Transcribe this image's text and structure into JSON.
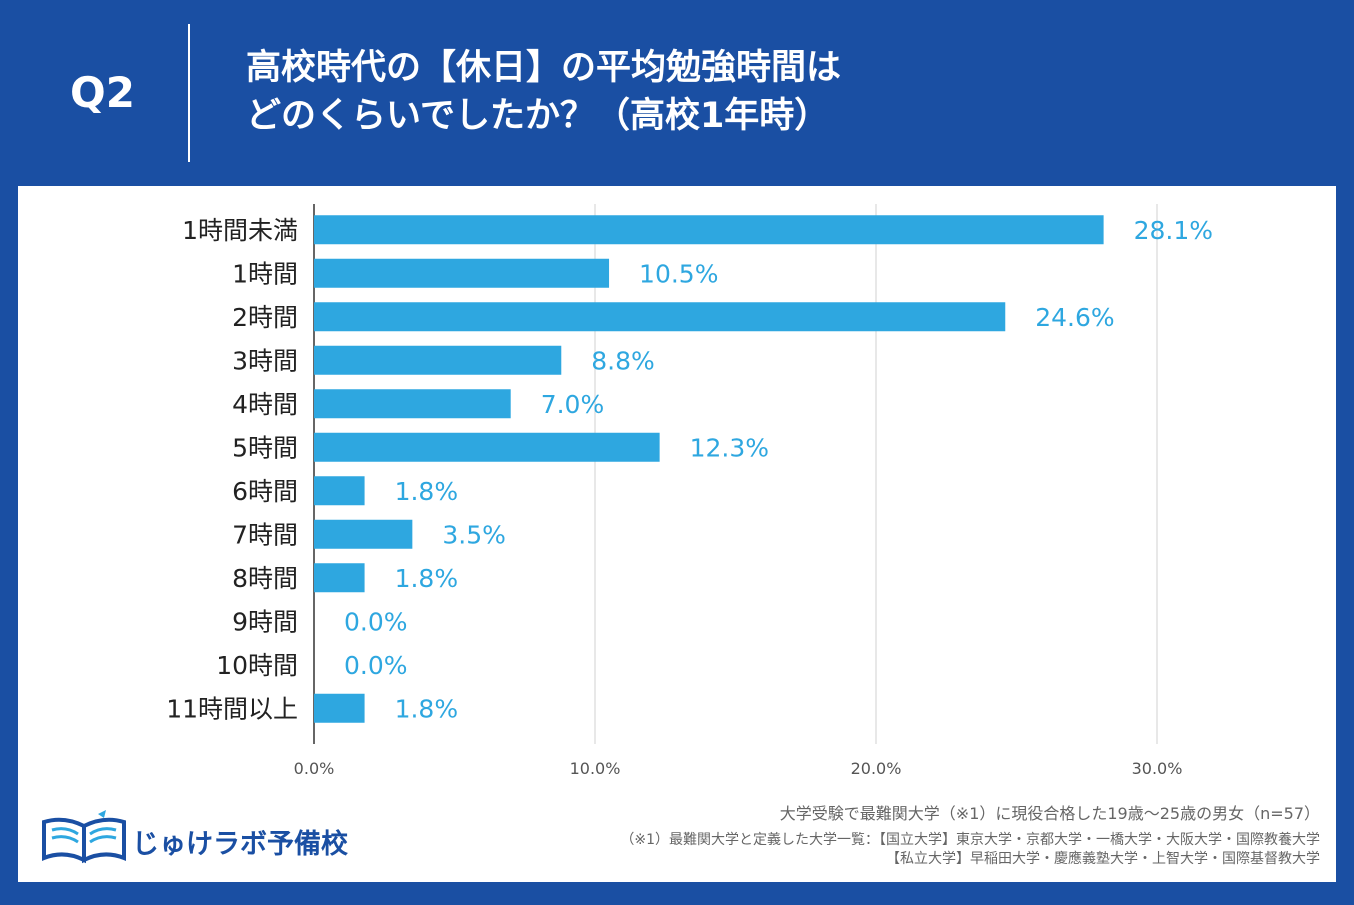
{
  "header": {
    "question_label": "Q2",
    "title_line1": "高校時代の【休日】の平均勉強時間は",
    "title_line2": "どのくらいでしたか？（高校1年時）"
  },
  "colors": {
    "background": "#1a4fa3",
    "bar": "#2ea7e0",
    "label": "#2ea7e0",
    "grid": "#d0d0d0"
  },
  "chart_data": {
    "type": "bar",
    "orientation": "horizontal",
    "categories": [
      "1時間未満",
      "1時間",
      "2時間",
      "3時間",
      "4時間",
      "5時間",
      "6時間",
      "7時間",
      "8時間",
      "9時間",
      "10時間",
      "11時間以上"
    ],
    "values": [
      28.1,
      10.5,
      24.6,
      8.8,
      7.0,
      12.3,
      1.8,
      3.5,
      1.8,
      0.0,
      0.0,
      1.8
    ],
    "value_labels": [
      "28.1%",
      "10.5%",
      "24.6%",
      "8.8%",
      "7.0%",
      "12.3%",
      "1.8%",
      "3.5%",
      "1.8%",
      "0.0%",
      "0.0%",
      "1.8%"
    ],
    "xlim": [
      0,
      30
    ],
    "xticks": [
      0,
      10,
      20,
      30
    ],
    "xtick_labels": [
      "0.0%",
      "10.0%",
      "20.0%",
      "30.0%"
    ],
    "grid": true,
    "legend": "none",
    "title": "",
    "xlabel": "",
    "ylabel": ""
  },
  "footer": {
    "logo_text": "じゅけラボ予備校",
    "sample_note": "大学受験で最難関大学（※1）に現役合格した19歳～25歳の男女（n=57）",
    "definition_note": "（※1）最難関大学と定義した大学一覧：【国立大学】東京大学・京都大学・一橋大学・大阪大学・国際教養大学",
    "private_note": "【私立大学】早稲田大学・慶應義塾大学・上智大学・国際基督教大学"
  },
  "icons": {
    "logo": "open-book-logo-icon"
  }
}
